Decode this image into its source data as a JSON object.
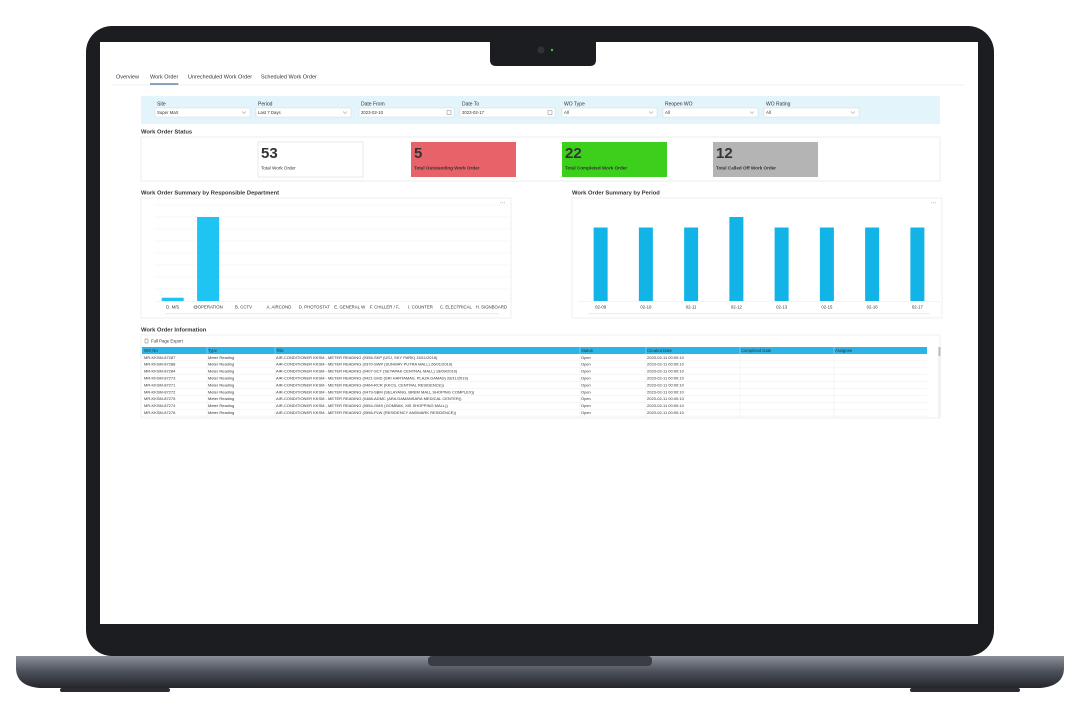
{
  "tabs": [
    "Overview",
    "Work Order",
    "Unrecheduled Work Order",
    "Scheduled Work Order"
  ],
  "filters": [
    {
      "label": "Site",
      "value": "Super Mart"
    },
    {
      "label": "Period",
      "value": "Last 7 Days"
    },
    {
      "label": "Date From",
      "value": "2023-02-10"
    },
    {
      "label": "Date To",
      "value": "2023-02-17"
    },
    {
      "label": "WO Type",
      "value": "All"
    },
    {
      "label": "Reopen WO",
      "value": "All"
    },
    {
      "label": "WO Rating",
      "value": "All"
    }
  ],
  "status": {
    "title": "Work Order Status",
    "cards": [
      {
        "value": 53,
        "label": "Total Work Order",
        "color": "#ffffff"
      },
      {
        "value": 5,
        "label": "Total Outstanding Work Order",
        "color": "#e8626a"
      },
      {
        "value": 22,
        "label": "Total Completed Work Order",
        "color": "#3ccf1c"
      },
      {
        "value": 12,
        "label": "Total Called Off Work Order",
        "color": "#b4b4b4"
      }
    ]
  },
  "chart_data": [
    {
      "type": "bar",
      "title": "Work Order Summary by Responsible Department",
      "categories": [
        "D. M/S",
        "@OPERATION",
        "B. CCTV",
        "A. AIRCOND",
        "D. PHOTOSTAT",
        "E. GENERAL W",
        "F. CHILLER / F..",
        "I. COUNTER",
        "C. ELECTRICAL",
        "H. SIGNBOARD"
      ],
      "values": [
        2,
        51,
        0,
        0,
        0,
        0,
        0,
        0,
        0,
        0
      ],
      "color": "#1ec4f2"
    },
    {
      "type": "bar",
      "title": "Work Order Summary by Period",
      "categories": [
        "02-09",
        "02-10",
        "02-11",
        "02-12",
        "02-13",
        "02-15",
        "02-16",
        "02-17"
      ],
      "values": [
        7,
        7,
        7,
        8,
        7,
        7,
        7,
        7
      ],
      "color": "#12b4e8"
    }
  ],
  "table": {
    "title": "Work Order Information",
    "export": "Full Page Export",
    "columns": [
      "WO No",
      "Type",
      "Title",
      "Status",
      "Created Date",
      "Completed Date",
      "Assignee"
    ],
    "rows": [
      [
        "MR-KKSM-87287",
        "Meter Reading",
        "AIR-CONDITIONER KKSM - METER READING (0356-SKP (USJ, SKY PARK) 15/11/2018)",
        "Open",
        "2023-02-11 00:00:10"
      ],
      [
        "MR-KKSM-87288",
        "Meter Reading",
        "AIR-CONDITIONER KKSM - METER READING (0370-SWP (SUNWAY PUTRA MALL) 26/01/2019)",
        "Open",
        "2023-02-11 00:00:10"
      ],
      [
        "MR-KKSM-87284",
        "Meter Reading",
        "AIR-CONDITIONER KKSM - METER READING (0407-SCT (SETAPAK CENTRAL MALL) 18/09/2019)",
        "Open",
        "2023-02-11 00:00:10"
      ],
      [
        "MR-KKSM-87273",
        "Meter Reading",
        "AIR-CONDITIONER KKSM - METER READING (0421-SHD (SRI HARTAMAS, PLAZA DAMAS) 28/11/2019)",
        "Open",
        "2023-02-11 00:00:10"
      ],
      [
        "MR-KKSM-87271",
        "Meter Reading",
        "AIR-CONDITIONER KKSM - METER READING (0464-RCR (KKCS, CENTRAL RESIDENCE))",
        "Open",
        "2023-02-11 00:00:10"
      ],
      [
        "MR-KKSM-87272",
        "Meter Reading",
        "AIR-CONDITIONER KKSM - METER READING (0479-SBM (SELAYANG, BREM MALL SHOPING COMPLEX))",
        "Open",
        "2023-02-11 00:00:10"
      ],
      [
        "MR-KKSM-87275",
        "Meter Reading",
        "AIR-CONDITIONER KKSM - METER READING (0488-ADMC (ARA DAMANSARA MEDICAL CENTER))",
        "Open",
        "2023-02-11 00:00:10"
      ],
      [
        "MR-KKSM-87274",
        "Meter Reading",
        "AIR-CONDITIONER KKSM - METER READING (0554-GMS (GOMBAK, MS SHOPPING MALL))",
        "Open",
        "2023-02-11 00:00:10"
      ],
      [
        "MR-KKSM-87276",
        "Meter Reading",
        "AIR-CONDITIONER KKSM - METER READING (0556-PLW (RESIDENCY ANDMARK RESIDENCE))",
        "Open",
        "2023-02-11 00:00:10"
      ]
    ]
  }
}
